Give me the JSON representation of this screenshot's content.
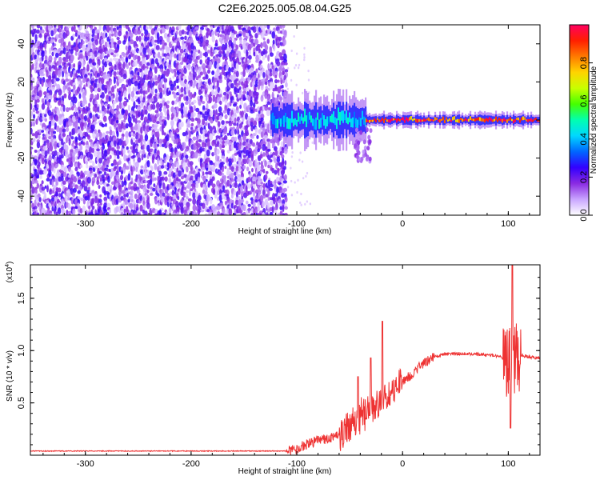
{
  "title": "C2E6.2025.005.08.04.G25",
  "chart_data": [
    {
      "type": "heatmap",
      "xlabel": "Height of straight line (km)",
      "ylabel": "Frequency (Hz)",
      "xlim": [
        -352,
        130
      ],
      "ylim": [
        -50,
        50
      ],
      "xticks": [
        -300,
        -200,
        -100,
        0,
        100
      ],
      "yticks": [
        -40,
        -20,
        0,
        20,
        40
      ],
      "noise_region": {
        "x_range": [
          -352,
          -110
        ],
        "y_range": [
          -50,
          50
        ],
        "normalized_amplitude_range": [
          0.0,
          0.25
        ]
      },
      "signal_segments": [
        {
          "x_range": [
            -125,
            -35
          ],
          "frequency_center": 0,
          "frequency_spread": 5,
          "normalized_amplitude": 0.45
        },
        {
          "x_range": [
            -45,
            -30
          ],
          "frequency_range": [
            -22,
            -5
          ],
          "normalized_amplitude": 0.15
        },
        {
          "x_range": [
            -35,
            130
          ],
          "frequency_center": 0,
          "frequency_spread": 1.5,
          "normalized_amplitude": 0.95
        }
      ]
    },
    {
      "type": "colorbar",
      "label": "Normalized spectral amplitude",
      "range": [
        0.0,
        1.0
      ],
      "ticks": [
        0.0,
        0.2,
        0.4,
        0.6,
        0.8
      ],
      "colors": [
        "#ffffff",
        "#c9a5ff",
        "#8a2be2",
        "#3300ff",
        "#0066ff",
        "#00d7ff",
        "#00ffb0",
        "#44ff00",
        "#c8ff00",
        "#ffd400",
        "#ff7a00",
        "#ff1f00",
        "#ff0060"
      ]
    },
    {
      "type": "line",
      "xlabel": "Height of straight line (km)",
      "ylabel": "SNR (10 * v/v)",
      "scale_label": "(x10",
      "scale_exponent": "4",
      "scale_suffix": ")",
      "xlim": [
        -352,
        130
      ],
      "ylim": [
        0.0,
        1.82
      ],
      "xticks": [
        -300,
        -200,
        -100,
        0,
        100
      ],
      "yticks": [
        0.5,
        1.0,
        1.5
      ],
      "ytick_labels": [
        "0.5",
        "1.0",
        "1.5"
      ],
      "color": "#ee3333",
      "x": [
        -352,
        -200,
        -110,
        -100,
        -90,
        -80,
        -70,
        -60,
        -50,
        -40,
        -30,
        -20,
        -15,
        -10,
        0,
        10,
        20,
        30,
        40,
        60,
        80,
        90,
        95,
        100,
        105,
        110,
        120,
        130
      ],
      "y": [
        0.04,
        0.04,
        0.04,
        0.06,
        0.11,
        0.14,
        0.16,
        0.2,
        0.3,
        0.38,
        0.45,
        0.52,
        0.55,
        0.6,
        0.7,
        0.78,
        0.88,
        0.94,
        0.97,
        0.97,
        0.96,
        0.95,
        0.93,
        0.88,
        0.92,
        0.96,
        0.94,
        0.93
      ],
      "spikes": [
        {
          "x": -42,
          "y": 0.75
        },
        {
          "x": -30,
          "y": 0.93
        },
        {
          "x": -19,
          "y": 1.28
        },
        {
          "x": 104,
          "y": 1.82
        },
        {
          "x": 102,
          "y": 0.26
        }
      ],
      "noise_amplitude": [
        {
          "x_range": [
            -110,
            -60
          ],
          "amplitude": 0.05
        },
        {
          "x_range": [
            -60,
            -35
          ],
          "amplitude": 0.18
        },
        {
          "x_range": [
            -35,
            0
          ],
          "amplitude": 0.15
        },
        {
          "x_range": [
            0,
            30
          ],
          "amplitude": 0.05
        },
        {
          "x_range": [
            30,
            95
          ],
          "amplitude": 0.015
        },
        {
          "x_range": [
            95,
            112
          ],
          "amplitude": 0.35
        },
        {
          "x_range": [
            112,
            130
          ],
          "amplitude": 0.015
        }
      ]
    }
  ]
}
